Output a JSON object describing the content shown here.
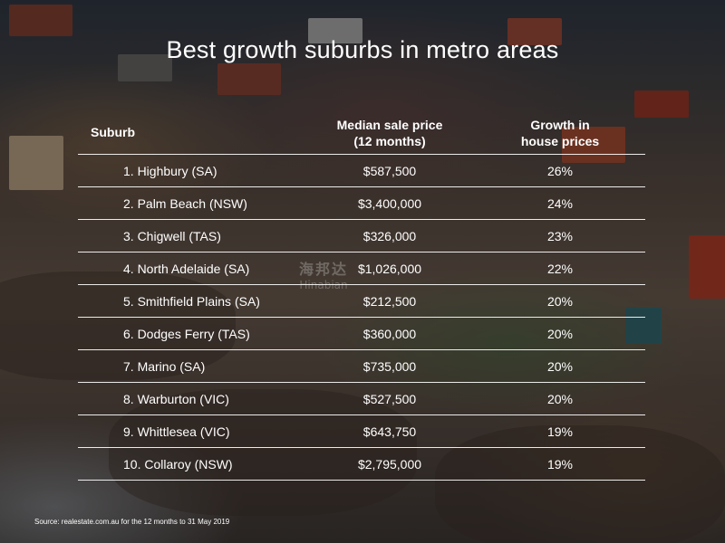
{
  "title": "Best growth suburbs in metro areas",
  "headers": {
    "suburb": "Suburb",
    "price_line1": "Median sale price",
    "price_line2": "(12 months)",
    "growth_line1": "Growth in",
    "growth_line2": "house prices"
  },
  "rows": [
    {
      "suburb": "1. Highbury (SA)",
      "price": "$587,500",
      "growth": "26%"
    },
    {
      "suburb": "2. Palm Beach (NSW)",
      "price": "$3,400,000",
      "growth": "24%"
    },
    {
      "suburb": "3. Chigwell (TAS)",
      "price": "$326,000",
      "growth": "23%"
    },
    {
      "suburb": "4. North Adelaide (SA)",
      "price": "$1,026,000",
      "growth": "22%"
    },
    {
      "suburb": "5. Smithfield Plains (SA)",
      "price": "$212,500",
      "growth": "20%"
    },
    {
      "suburb": "6. Dodges Ferry (TAS)",
      "price": "$360,000",
      "growth": "20%"
    },
    {
      "suburb": "7. Marino (SA)",
      "price": "$735,000",
      "growth": "20%"
    },
    {
      "suburb": "8. Warburton (VIC)",
      "price": "$527,500",
      "growth": "20%"
    },
    {
      "suburb": "9. Whittlesea (VIC)",
      "price": "$643,750",
      "growth": "19%"
    },
    {
      "suburb": "10. Collaroy (NSW)",
      "price": "$2,795,000",
      "growth": "19%"
    }
  ],
  "watermark": {
    "logo": "海邦达",
    "sub": "Hinabian"
  },
  "source": "Source: realestate.com.au for the 12 months to 31 May 2019"
}
